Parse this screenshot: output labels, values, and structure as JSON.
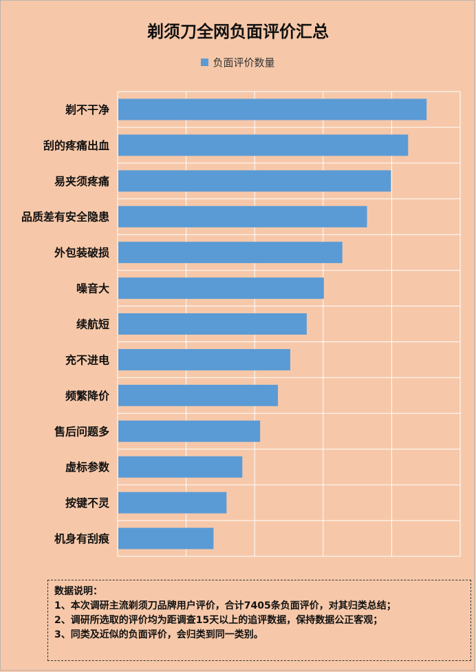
{
  "chart_data": {
    "type": "bar",
    "orientation": "horizontal",
    "title": "剃须刀全网负面评价汇总",
    "legend": "top-center",
    "grid": true,
    "xlim": [
      0,
      5
    ],
    "categories": [
      "剃不干净",
      "刮的疼痛出血",
      "易夹须疼痛",
      "品质差有安全隐患",
      "外包装破损",
      "噪音大",
      "续航短",
      "充不进电",
      "频繁降价",
      "售后问题多",
      "虚标参数",
      "按键不灵",
      "机身有刮痕"
    ],
    "series": [
      {
        "name": "负面评价数量",
        "color": "#5b9bd5",
        "values": [
          4.5,
          4.23,
          3.98,
          3.63,
          3.27,
          3.0,
          2.75,
          2.51,
          2.33,
          2.07,
          1.81,
          1.58,
          1.39
        ]
      }
    ]
  },
  "notes": {
    "heading": "数据说明：",
    "lines": [
      "1、本次调研主流剃须刀品牌用户评价，合计7405条负面评价，对其归类总结；",
      "2、调研所选取的评价均为距调查15天以上的追评数据，保持数据公正客观；",
      "3、同类及近似的负面评价，会归类到同一类别。"
    ]
  }
}
